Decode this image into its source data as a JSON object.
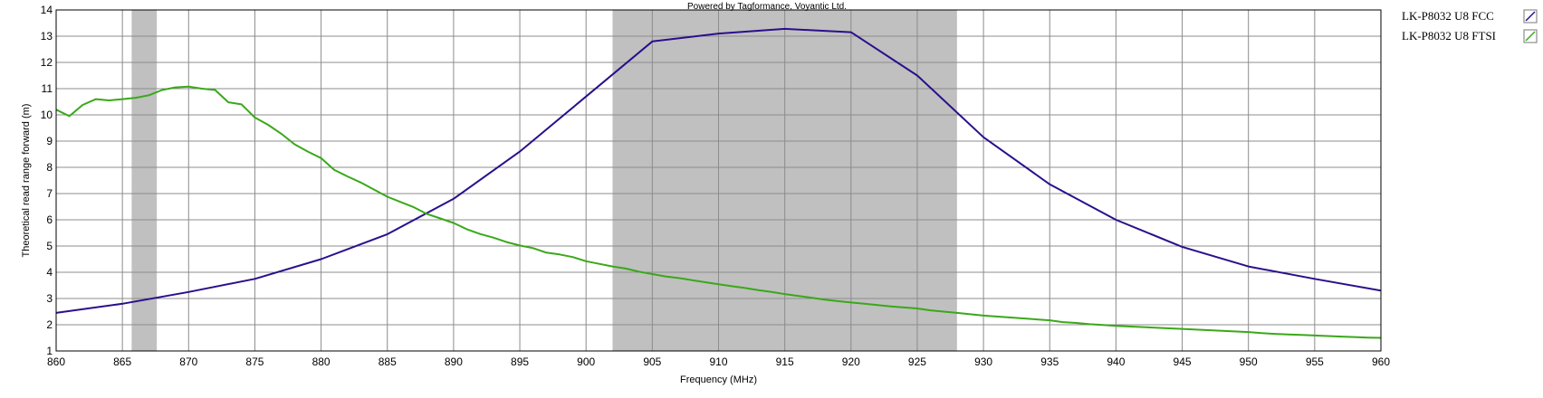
{
  "chart_data": {
    "type": "line",
    "title": "",
    "credit": "Powered by Tagformance, Voyantic Ltd.",
    "xlabel": "Frequency (MHz)",
    "ylabel": "Theoretical read range forward (m)",
    "xlim": [
      860,
      960
    ],
    "ylim": [
      1,
      14
    ],
    "xticks": [
      860,
      865,
      870,
      875,
      880,
      885,
      890,
      895,
      900,
      905,
      910,
      915,
      920,
      925,
      930,
      935,
      940,
      945,
      950,
      955,
      960
    ],
    "yticks": [
      1,
      2,
      3,
      4,
      5,
      6,
      7,
      8,
      9,
      10,
      11,
      12,
      13,
      14
    ],
    "grid": true,
    "legend_position": "right",
    "shaded_bands": [
      {
        "from": 865.7,
        "to": 867.6
      },
      {
        "from": 902,
        "to": 928
      }
    ],
    "band_color": "#c0c0c0",
    "series": [
      {
        "name": "LK-P8032 U8 FCC",
        "color": "#2a0f8c",
        "x": [
          860,
          865,
          870,
          875,
          880,
          885,
          890,
          895,
          900,
          905,
          910,
          915,
          920,
          925,
          930,
          935,
          940,
          945,
          950,
          955,
          960
        ],
        "y": [
          2.45,
          2.8,
          3.25,
          3.75,
          4.5,
          5.45,
          6.8,
          8.6,
          10.7,
          12.8,
          13.1,
          13.28,
          13.15,
          11.5,
          9.15,
          7.35,
          6.0,
          4.97,
          4.22,
          3.75,
          3.3
        ]
      },
      {
        "name": "LK-P8032 U8 FTSI",
        "color": "#3aa81a",
        "x": [
          860,
          861,
          862,
          863,
          864,
          865,
          866,
          867,
          868,
          869,
          870,
          871,
          872,
          873,
          874,
          875,
          876,
          877,
          878,
          879,
          880,
          881,
          882,
          883,
          884,
          885,
          886,
          887,
          888,
          889,
          890,
          891,
          892,
          893,
          894,
          895,
          896,
          897,
          898,
          899,
          900,
          901,
          902,
          903,
          904,
          905,
          906,
          907,
          908,
          909,
          910,
          911,
          912,
          913,
          914,
          915,
          916,
          917,
          918,
          919,
          920,
          921,
          922,
          923,
          924,
          925,
          926,
          927,
          928,
          929,
          930,
          935,
          936,
          937,
          938,
          939,
          940,
          945,
          950,
          951,
          952,
          953,
          954,
          955,
          956,
          957,
          958,
          959,
          960
        ],
        "y": [
          10.2,
          9.95,
          10.38,
          10.6,
          10.55,
          10.6,
          10.65,
          10.75,
          10.95,
          11.05,
          11.08,
          11.0,
          10.95,
          10.48,
          10.4,
          9.9,
          9.62,
          9.28,
          8.88,
          8.6,
          8.35,
          7.9,
          7.65,
          7.42,
          7.15,
          6.88,
          6.68,
          6.48,
          6.22,
          6.05,
          5.88,
          5.64,
          5.46,
          5.32,
          5.15,
          5.02,
          4.92,
          4.75,
          4.68,
          4.58,
          4.42,
          4.32,
          4.22,
          4.14,
          4.02,
          3.93,
          3.84,
          3.78,
          3.7,
          3.62,
          3.54,
          3.47,
          3.4,
          3.32,
          3.25,
          3.17,
          3.1,
          3.03,
          2.96,
          2.9,
          2.85,
          2.8,
          2.75,
          2.7,
          2.66,
          2.62,
          2.55,
          2.5,
          2.45,
          2.4,
          2.35,
          2.17,
          2.1,
          2.07,
          2.02,
          1.99,
          1.96,
          1.84,
          1.72,
          1.68,
          1.65,
          1.63,
          1.61,
          1.59,
          1.57,
          1.55,
          1.53,
          1.51,
          1.5
        ]
      }
    ]
  }
}
